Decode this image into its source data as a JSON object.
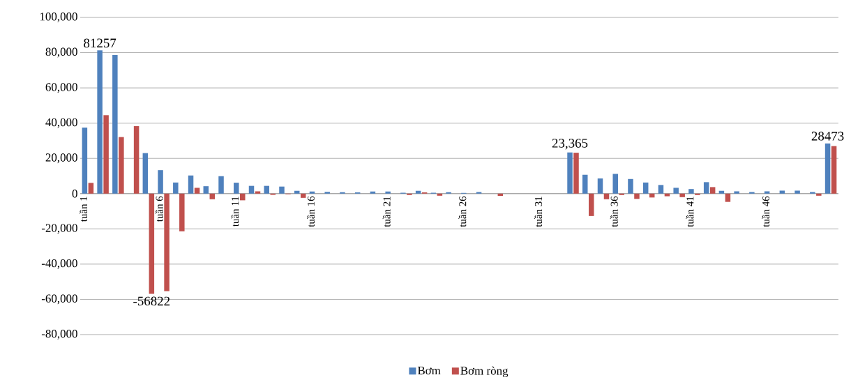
{
  "chart_data": {
    "type": "bar",
    "categories": [
      "tuần 1",
      null,
      null,
      null,
      null,
      "tuần 6",
      null,
      null,
      null,
      null,
      "tuần 11",
      null,
      null,
      null,
      null,
      "tuần 16",
      null,
      null,
      null,
      null,
      "tuần 21",
      null,
      null,
      null,
      null,
      "tuần 26",
      null,
      null,
      null,
      null,
      "tuần 31",
      null,
      null,
      null,
      null,
      "tuần 36",
      null,
      null,
      null,
      null,
      "tuần 41",
      null,
      null,
      null,
      null,
      "tuần 46",
      null,
      null,
      null,
      null
    ],
    "series": [
      {
        "name": "Bơm",
        "color": "#4f81bd",
        "values": [
          37500,
          81257,
          78600,
          0,
          23000,
          13300,
          6300,
          10300,
          4200,
          9900,
          6200,
          4400,
          4400,
          4000,
          1600,
          1200,
          1000,
          800,
          700,
          1200,
          1200,
          500,
          1600,
          500,
          800,
          400,
          900,
          0,
          0,
          0,
          0,
          0,
          23365,
          10700,
          8600,
          11200,
          8300,
          6300,
          4900,
          3300,
          2600,
          6500,
          1600,
          1300,
          900,
          1300,
          1700,
          1700,
          900,
          28473
        ],
        "value_labels": [
          null,
          "81257",
          null,
          null,
          null,
          null,
          null,
          null,
          null,
          null,
          null,
          null,
          null,
          null,
          null,
          null,
          null,
          null,
          null,
          null,
          null,
          null,
          null,
          null,
          null,
          null,
          null,
          null,
          null,
          null,
          null,
          null,
          "23,365",
          null,
          null,
          null,
          null,
          null,
          null,
          null,
          null,
          null,
          null,
          null,
          null,
          null,
          null,
          null,
          null,
          "28473"
        ]
      },
      {
        "name": "Bơm ròng",
        "color": "#c0504d",
        "values": [
          6100,
          44500,
          32100,
          38300,
          -56822,
          -55400,
          -21400,
          3300,
          -3200,
          0,
          -3800,
          1300,
          -700,
          -300,
          -2400,
          0,
          0,
          0,
          0,
          0,
          0,
          -800,
          700,
          -1200,
          0,
          0,
          0,
          -1300,
          0,
          0,
          0,
          0,
          23200,
          -12700,
          -3200,
          -800,
          -3000,
          -2200,
          -1500,
          -2000,
          -800,
          3700,
          -4700,
          0,
          0,
          0,
          0,
          0,
          -1200,
          27000
        ],
        "value_labels": [
          null,
          null,
          null,
          null,
          "-56822",
          null,
          null,
          null,
          null,
          null,
          null,
          null,
          null,
          null,
          null,
          null,
          null,
          null,
          null,
          null,
          null,
          null,
          null,
          null,
          null,
          null,
          null,
          null,
          null,
          null,
          null,
          null,
          null,
          null,
          null,
          null,
          null,
          null,
          null,
          null,
          null,
          null,
          null,
          null,
          null,
          null,
          null,
          null,
          null,
          null
        ]
      }
    ],
    "ylim": [
      -80000,
      100000
    ],
    "yticks": [
      {
        "value": -80000,
        "label": "-80,000"
      },
      {
        "value": -60000,
        "label": "-60,000"
      },
      {
        "value": -40000,
        "label": "-40,000"
      },
      {
        "value": -20000,
        "label": "-20,000"
      },
      0,
      {
        "value": 20000,
        "label": "20,000"
      },
      {
        "value": 40000,
        "label": "40,000"
      },
      {
        "value": 60000,
        "label": "60,000"
      },
      {
        "value": 80000,
        "label": "80,000"
      },
      {
        "value": 100000,
        "label": "100,000"
      }
    ],
    "grid": "y",
    "legend": "bottom"
  }
}
